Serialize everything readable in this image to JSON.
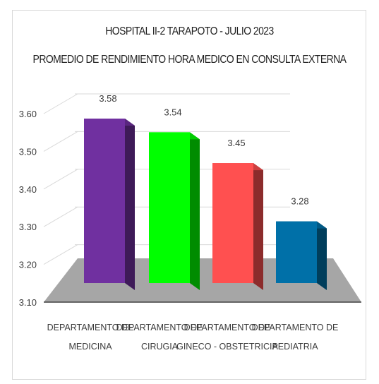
{
  "chart_data": {
    "type": "bar",
    "title": "HOSPITAL II-2 TARAPOTO - JULIO 2023",
    "subtitle": "PROMEDIO DE RENDIMIENTO HORA MEDICO EN CONSULTA EXTERNA",
    "categories": [
      [
        "DEPARTAMENTO DE",
        "MEDICINA"
      ],
      [
        "DEPARTAMENTO DE",
        "CIRUGIA"
      ],
      [
        "DEPARTAMENTO DE",
        "GINECO - OBSTETRICIA"
      ],
      [
        "DEPARTAMENTO DE",
        "PEDIATRIA"
      ]
    ],
    "values": [
      3.58,
      3.54,
      3.45,
      3.28
    ],
    "value_labels": [
      "3.58",
      "3.54",
      "3.45",
      "3.28"
    ],
    "colors": [
      "#7030a0",
      "#00ff00",
      "#ff5050",
      "#0070a8"
    ],
    "ylim": [
      3.1,
      3.6
    ],
    "yticks": [
      "3.10",
      "3.20",
      "3.30",
      "3.40",
      "3.50",
      "3.60"
    ],
    "ytick_values": [
      3.1,
      3.2,
      3.3,
      3.4,
      3.5,
      3.6
    ],
    "grid": true,
    "style": "3d-column"
  }
}
